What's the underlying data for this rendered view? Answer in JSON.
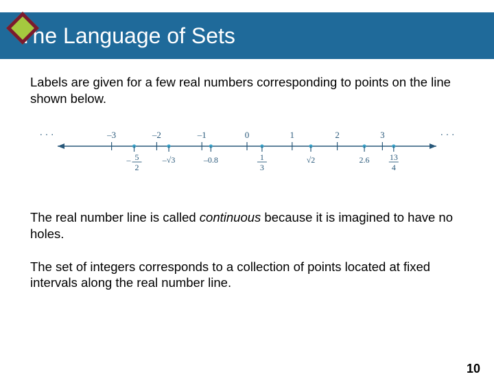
{
  "title": "The Language of Sets",
  "para1": "Labels are given for a few real numbers corresponding to points on the line shown below.",
  "para2a": "The real number line is called ",
  "para2b": "continuous",
  "para2c": " because it is imagined to have no holes.",
  "para3": "The set of integers corresponds to a collection of points located at fixed intervals along the real number line.",
  "pageNumber": "10",
  "numberline": {
    "axis_color": "#28587a",
    "point_color": "#3ba3c9",
    "bg": "#ffffff",
    "range": [
      -3.8,
      3.8
    ],
    "integer_ticks": [
      -3,
      -2,
      -1,
      0,
      1,
      2,
      3
    ],
    "integer_labels": [
      "–3",
      "–2",
      "–1",
      "0",
      "1",
      "2",
      "3"
    ],
    "ellipsis": "· · ·",
    "points_below": [
      {
        "x": -2.5,
        "type": "frac",
        "num": "5",
        "den": "2",
        "neg": true
      },
      {
        "x": -1.732,
        "type": "sqrt",
        "text": "–√3"
      },
      {
        "x": -0.8,
        "type": "plain",
        "text": "–0.8"
      },
      {
        "x": 0.333,
        "type": "frac",
        "num": "1",
        "den": "3",
        "neg": false
      },
      {
        "x": 1.414,
        "type": "sqrt",
        "text": "√2"
      },
      {
        "x": 2.6,
        "type": "plain",
        "text": "2.6"
      },
      {
        "x": 3.25,
        "type": "frac",
        "num": "13",
        "den": "4",
        "neg": false
      }
    ]
  }
}
